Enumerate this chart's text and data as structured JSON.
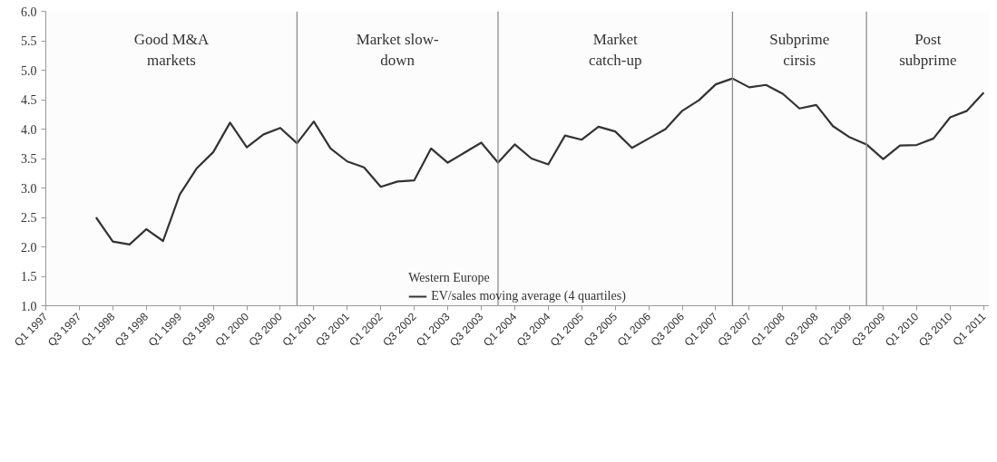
{
  "chart_data": {
    "type": "line",
    "x": [
      "1997-10",
      "1998-01",
      "1998-04",
      "1998-07",
      "1998-10",
      "1999-01",
      "1999-04",
      "1999-07",
      "1999-10",
      "2000-01",
      "2000-04",
      "2000-07",
      "2000-10",
      "2001-01",
      "2001-04",
      "2001-07",
      "2001-10",
      "2002-01",
      "2002-04",
      "2002-07",
      "2002-10",
      "2003-01",
      "2003-04",
      "2003-07",
      "2003-10",
      "2004-01",
      "2004-04",
      "2004-07",
      "2004-10",
      "2005-01",
      "2005-04",
      "2005-07",
      "2005-10",
      "2006-01",
      "2006-04",
      "2006-07",
      "2006-10",
      "2007-01",
      "2007-04",
      "2007-07",
      "2007-10",
      "2008-01",
      "2008-04",
      "2008-07",
      "2008-10",
      "2009-01",
      "2009-04",
      "2009-07",
      "2009-10",
      "2010-01",
      "2010-04",
      "2010-07",
      "2010-10",
      "2011-01"
    ],
    "series": [
      {
        "name": "EV/sales moving average (4 quartiles)",
        "color": "#333333",
        "values": [
          2.5,
          2.09,
          2.04,
          2.3,
          2.1,
          2.89,
          3.33,
          3.61,
          4.11,
          3.69,
          3.91,
          4.02,
          3.76,
          4.13,
          3.67,
          3.45,
          3.35,
          3.02,
          3.11,
          3.13,
          3.67,
          3.43,
          3.6,
          3.77,
          3.43,
          3.74,
          3.5,
          3.4,
          3.89,
          3.82,
          4.04,
          3.96,
          3.68,
          3.84,
          4.0,
          4.31,
          4.49,
          4.76,
          4.86,
          4.71,
          4.75,
          4.6,
          4.35,
          4.41,
          4.05,
          3.86,
          3.74,
          3.49,
          3.72,
          3.73,
          3.84,
          4.2,
          4.31,
          4.62
        ]
      }
    ],
    "legend_title": "Western Europe",
    "legend": "bottom",
    "line_style": "solid",
    "grid": false,
    "ylim": [
      1.0,
      6.0
    ],
    "yticks": [
      {
        "value": 1,
        "label": "1.0"
      },
      {
        "value": 1.5,
        "label": "1.5"
      },
      {
        "value": 2,
        "label": "2.0"
      },
      {
        "value": 2.5,
        "label": "2.5"
      },
      {
        "value": 3,
        "label": "3.0"
      },
      {
        "value": 3.5,
        "label": "3.5"
      },
      {
        "value": 4,
        "label": "4.0"
      },
      {
        "value": 4.5,
        "label": "4.5"
      },
      {
        "value": 5,
        "label": "5.0"
      },
      {
        "value": 5.5,
        "label": "5.5"
      },
      {
        "value": 6,
        "label": "6.0"
      }
    ],
    "xlim": [
      "1997-01",
      "2011-02"
    ],
    "xticks": [
      {
        "value": "1997-01",
        "label": "Q1 1997"
      },
      {
        "value": "1997-07",
        "label": "Q3 1997"
      },
      {
        "value": "1998-01",
        "label": "Q1 1998"
      },
      {
        "value": "1998-07",
        "label": "Q3 1998"
      },
      {
        "value": "1999-01",
        "label": "Q1 1999"
      },
      {
        "value": "1999-07",
        "label": "Q3 1999"
      },
      {
        "value": "2000-01",
        "label": "Q1 2000"
      },
      {
        "value": "2000-07",
        "label": "Q3 2000"
      },
      {
        "value": "2001-01",
        "label": "Q1 2001"
      },
      {
        "value": "2001-07",
        "label": "Q3 2001"
      },
      {
        "value": "2002-01",
        "label": "Q1 2002"
      },
      {
        "value": "2002-07",
        "label": "Q3 2002"
      },
      {
        "value": "2003-01",
        "label": "Q1 2003"
      },
      {
        "value": "2003-07",
        "label": "Q3 2003"
      },
      {
        "value": "2004-01",
        "label": "Q1 2004"
      },
      {
        "value": "2004-07",
        "label": "Q3 2004"
      },
      {
        "value": "2005-01",
        "label": "Q1 2005"
      },
      {
        "value": "2005-07",
        "label": "Q3 2005"
      },
      {
        "value": "2006-01",
        "label": "Q1 2006"
      },
      {
        "value": "2006-07",
        "label": "Q3 2006"
      },
      {
        "value": "2007-01",
        "label": "Q1 2007"
      },
      {
        "value": "2007-07",
        "label": "Q3 2007"
      },
      {
        "value": "2008-01",
        "label": "Q1 2008"
      },
      {
        "value": "2008-07",
        "label": "Q3 2008"
      },
      {
        "value": "2009-01",
        "label": "Q1 2009"
      },
      {
        "value": "2009-07",
        "label": "Q3 2009"
      },
      {
        "value": "2010-01",
        "label": "Q1 2010"
      },
      {
        "value": "2010-07",
        "label": "Q3 2010"
      },
      {
        "value": "2011-01",
        "label": "Q1 2011"
      }
    ],
    "ref_lines": [
      {
        "axis": "x",
        "value": "2000-10",
        "color": "#8c8c8c"
      },
      {
        "axis": "x",
        "value": "2003-10",
        "color": "#8c8c8c"
      },
      {
        "axis": "x",
        "value": "2007-04",
        "color": "#8c8c8c"
      },
      {
        "axis": "x",
        "value": "2009-04",
        "color": "#8c8c8c"
      }
    ],
    "annotations": [
      "Good M&A\nmarkets",
      "Market slow-\ndown",
      "Market\ncatch-up",
      "Subprime\ncirsis",
      "Post\nsubprime"
    ]
  }
}
